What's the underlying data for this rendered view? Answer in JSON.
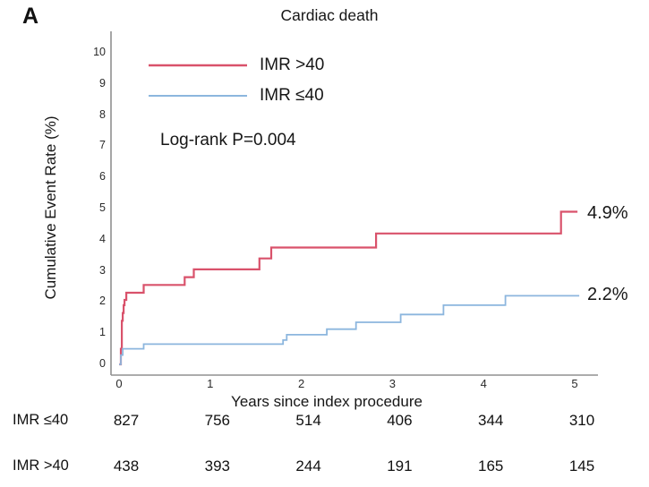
{
  "chart": {
    "type": "line",
    "subtype": "kaplan-meier-step",
    "panel_label": "A",
    "title": "Cardiac death",
    "xlabel": "Years since index procedure",
    "ylabel": "Cumulative Event Rate (%)",
    "annotation": "Log-rank P=0.004",
    "x_ticks": [
      0,
      1,
      2,
      3,
      4,
      5
    ],
    "y_ticks": [
      0,
      1,
      2,
      3,
      4,
      5,
      6,
      7,
      8,
      9,
      10
    ],
    "xlim": [
      0,
      5.25
    ],
    "ylim": [
      0,
      10.5
    ],
    "grid": false,
    "legend_position": "upper-left-inside",
    "axis_color": "#909090",
    "series": [
      {
        "name": "IMR >40",
        "color": "#d9526b",
        "end_label": "4.9%",
        "points": [
          [
            0,
            0
          ],
          [
            0.02,
            0.5
          ],
          [
            0.03,
            1.4
          ],
          [
            0.04,
            1.65
          ],
          [
            0.05,
            1.9
          ],
          [
            0.06,
            2.07
          ],
          [
            0.08,
            2.3
          ],
          [
            0.27,
            2.55
          ],
          [
            0.72,
            2.8
          ],
          [
            0.82,
            3.05
          ],
          [
            1.54,
            3.4
          ],
          [
            1.67,
            3.75
          ],
          [
            2.82,
            4.2
          ],
          [
            4.85,
            4.9
          ],
          [
            5.03,
            4.9
          ]
        ]
      },
      {
        "name": "IMR ≤40",
        "color": "#8cb6de",
        "end_label": "2.2%",
        "points": [
          [
            0,
            0
          ],
          [
            0.02,
            0.3
          ],
          [
            0.04,
            0.5
          ],
          [
            0.27,
            0.65
          ],
          [
            1.8,
            0.78
          ],
          [
            1.84,
            0.95
          ],
          [
            2.28,
            1.13
          ],
          [
            2.6,
            1.35
          ],
          [
            3.09,
            1.6
          ],
          [
            3.56,
            1.9
          ],
          [
            4.24,
            2.2
          ],
          [
            5.05,
            2.2
          ]
        ]
      }
    ],
    "risk_table": {
      "rows": [
        {
          "label": "IMR ≤40",
          "counts": [
            827,
            756,
            514,
            406,
            344,
            310
          ]
        },
        {
          "label": "IMR >40",
          "counts": [
            438,
            393,
            244,
            191,
            165,
            145
          ]
        }
      ]
    }
  }
}
